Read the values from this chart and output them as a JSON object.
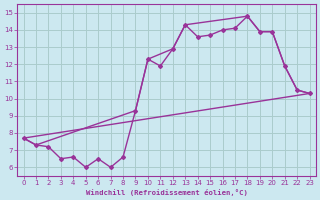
{
  "bg_color": "#cce8f0",
  "line_color": "#993399",
  "grid_color": "#aacccc",
  "xlabel": "Windchill (Refroidissement éolien,°C)",
  "xlim": [
    -0.5,
    23.5
  ],
  "ylim": [
    5.5,
    15.5
  ],
  "yticks": [
    6,
    7,
    8,
    9,
    10,
    11,
    12,
    13,
    14,
    15
  ],
  "xticks": [
    0,
    1,
    2,
    3,
    4,
    5,
    6,
    7,
    8,
    9,
    10,
    11,
    12,
    13,
    14,
    15,
    16,
    17,
    18,
    19,
    20,
    21,
    22,
    23
  ],
  "series1_x": [
    0,
    1,
    2,
    3,
    4,
    5,
    6,
    7,
    8,
    9,
    10,
    11,
    12,
    13,
    14,
    15,
    16,
    17,
    18,
    19,
    20,
    21,
    22,
    23
  ],
  "series1_y": [
    7.7,
    7.3,
    7.2,
    6.5,
    6.6,
    6.0,
    6.5,
    6.0,
    6.6,
    9.3,
    12.3,
    11.9,
    12.9,
    14.3,
    13.6,
    13.7,
    14.0,
    14.1,
    14.8,
    13.9,
    13.9,
    11.9,
    10.5,
    10.3
  ],
  "series2_x": [
    0,
    1,
    9,
    10,
    12,
    13,
    18,
    19,
    20,
    21,
    22,
    23
  ],
  "series2_y": [
    7.7,
    7.3,
    9.3,
    12.3,
    12.9,
    14.3,
    14.8,
    13.9,
    13.9,
    11.9,
    10.5,
    10.3
  ],
  "series3_x": [
    0,
    23
  ],
  "series3_y": [
    7.7,
    10.3
  ]
}
